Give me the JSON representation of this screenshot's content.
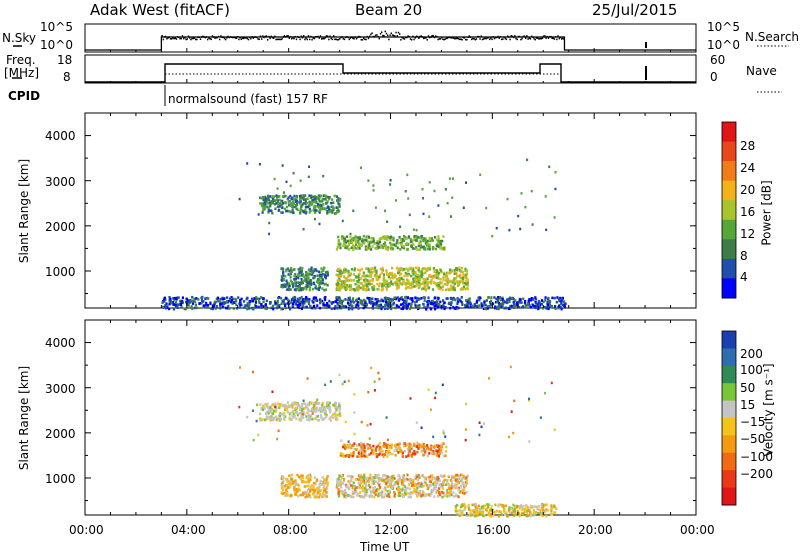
{
  "header": {
    "station": "Adak West (fitACF)",
    "beam": "Beam 20",
    "date": "25/Jul/2015"
  },
  "summary_panels": {
    "nsky_label": "N.Sky",
    "nsky_ticks": [
      "10^5",
      "10^0"
    ],
    "nsky_right_ticks": [
      "10^5",
      "10^0"
    ],
    "nsearch_label": "N.Search",
    "freq_label_1": "Freq.",
    "freq_label_2": "[MHz]",
    "freq_ticks": [
      "18",
      "8"
    ],
    "nave_ticks": [
      "60",
      "0"
    ],
    "nave_label": "Nave",
    "cpid_label": "CPID",
    "cpid_text": "normalsound (fast) 157 RF"
  },
  "chart_data": [
    {
      "type": "heatmap",
      "title": "",
      "xlabel": "",
      "ylabel": "Slant Range [km]",
      "x_ticks": [
        "00:00",
        "04:00",
        "08:00",
        "12:00",
        "16:00",
        "20:00",
        "00:00"
      ],
      "y_ticks": [
        "1000",
        "2000",
        "3000",
        "4000"
      ],
      "ylim": [
        180,
        4500
      ],
      "colorbar": {
        "label": "Power [dB]",
        "ticks": [
          "4",
          "8",
          "12",
          "16",
          "20",
          "24",
          "28"
        ],
        "colors": [
          "#0000ff",
          "#1f4fa8",
          "#3d7d4a",
          "#56a63a",
          "#a9c32a",
          "#f2b21c",
          "#f07d17",
          "#e8461b",
          "#e01515"
        ]
      },
      "data_coverage": {
        "start_ut": "03:00",
        "end_ut": "18:50"
      },
      "echo_regions": [
        {
          "start_ut": "06:50",
          "end_ut": "10:00",
          "range_km": [
            2300,
            2700
          ],
          "level": 2
        },
        {
          "start_ut": "09:50",
          "end_ut": "14:10",
          "range_km": [
            1500,
            1800
          ],
          "level": 3
        },
        {
          "start_ut": "07:40",
          "end_ut": "09:30",
          "range_km": [
            600,
            1100
          ],
          "level": 2
        },
        {
          "start_ut": "09:50",
          "end_ut": "15:00",
          "range_km": [
            600,
            1100
          ],
          "level": 4
        },
        {
          "start_ut": "03:00",
          "end_ut": "18:50",
          "range_km": [
            180,
            450
          ],
          "level": 1
        }
      ]
    },
    {
      "type": "heatmap",
      "title": "",
      "xlabel": "Time UT",
      "ylabel": "Slant Range [km]",
      "x_ticks": [
        "00:00",
        "04:00",
        "08:00",
        "12:00",
        "16:00",
        "20:00",
        "00:00"
      ],
      "y_ticks": [
        "1000",
        "2000",
        "3000",
        "4000"
      ],
      "ylim": [
        180,
        4500
      ],
      "colorbar": {
        "label": "Velocity [m s⁻¹]",
        "ticks": [
          "200",
          "100",
          "50",
          "15",
          "−15",
          "−50",
          "−100",
          "−200"
        ],
        "colors": [
          "#1a3fb0",
          "#2f6db0",
          "#2f8a55",
          "#7ac43a",
          "#c4c4c4",
          "#f5c21a",
          "#f29a12",
          "#ef6a12",
          "#e83816",
          "#e01515"
        ]
      },
      "data_coverage": {
        "start_ut": "03:00",
        "end_ut": "18:50"
      },
      "echo_regions": [
        {
          "start_ut": "06:50",
          "end_ut": "10:00",
          "range_km": [
            2300,
            2700
          ],
          "velocity": "grey"
        },
        {
          "start_ut": "10:00",
          "end_ut": "14:10",
          "range_km": [
            1500,
            1800
          ],
          "velocity": "orange"
        },
        {
          "start_ut": "07:40",
          "end_ut": "09:30",
          "range_km": [
            600,
            1100
          ],
          "velocity": "yellow-orange"
        },
        {
          "start_ut": "09:50",
          "end_ut": "15:00",
          "range_km": [
            600,
            1100
          ],
          "velocity": "orange-grey"
        },
        {
          "start_ut": "14:30",
          "end_ut": "18:30",
          "range_km": [
            180,
            450
          ],
          "velocity": "yellow"
        }
      ]
    }
  ]
}
